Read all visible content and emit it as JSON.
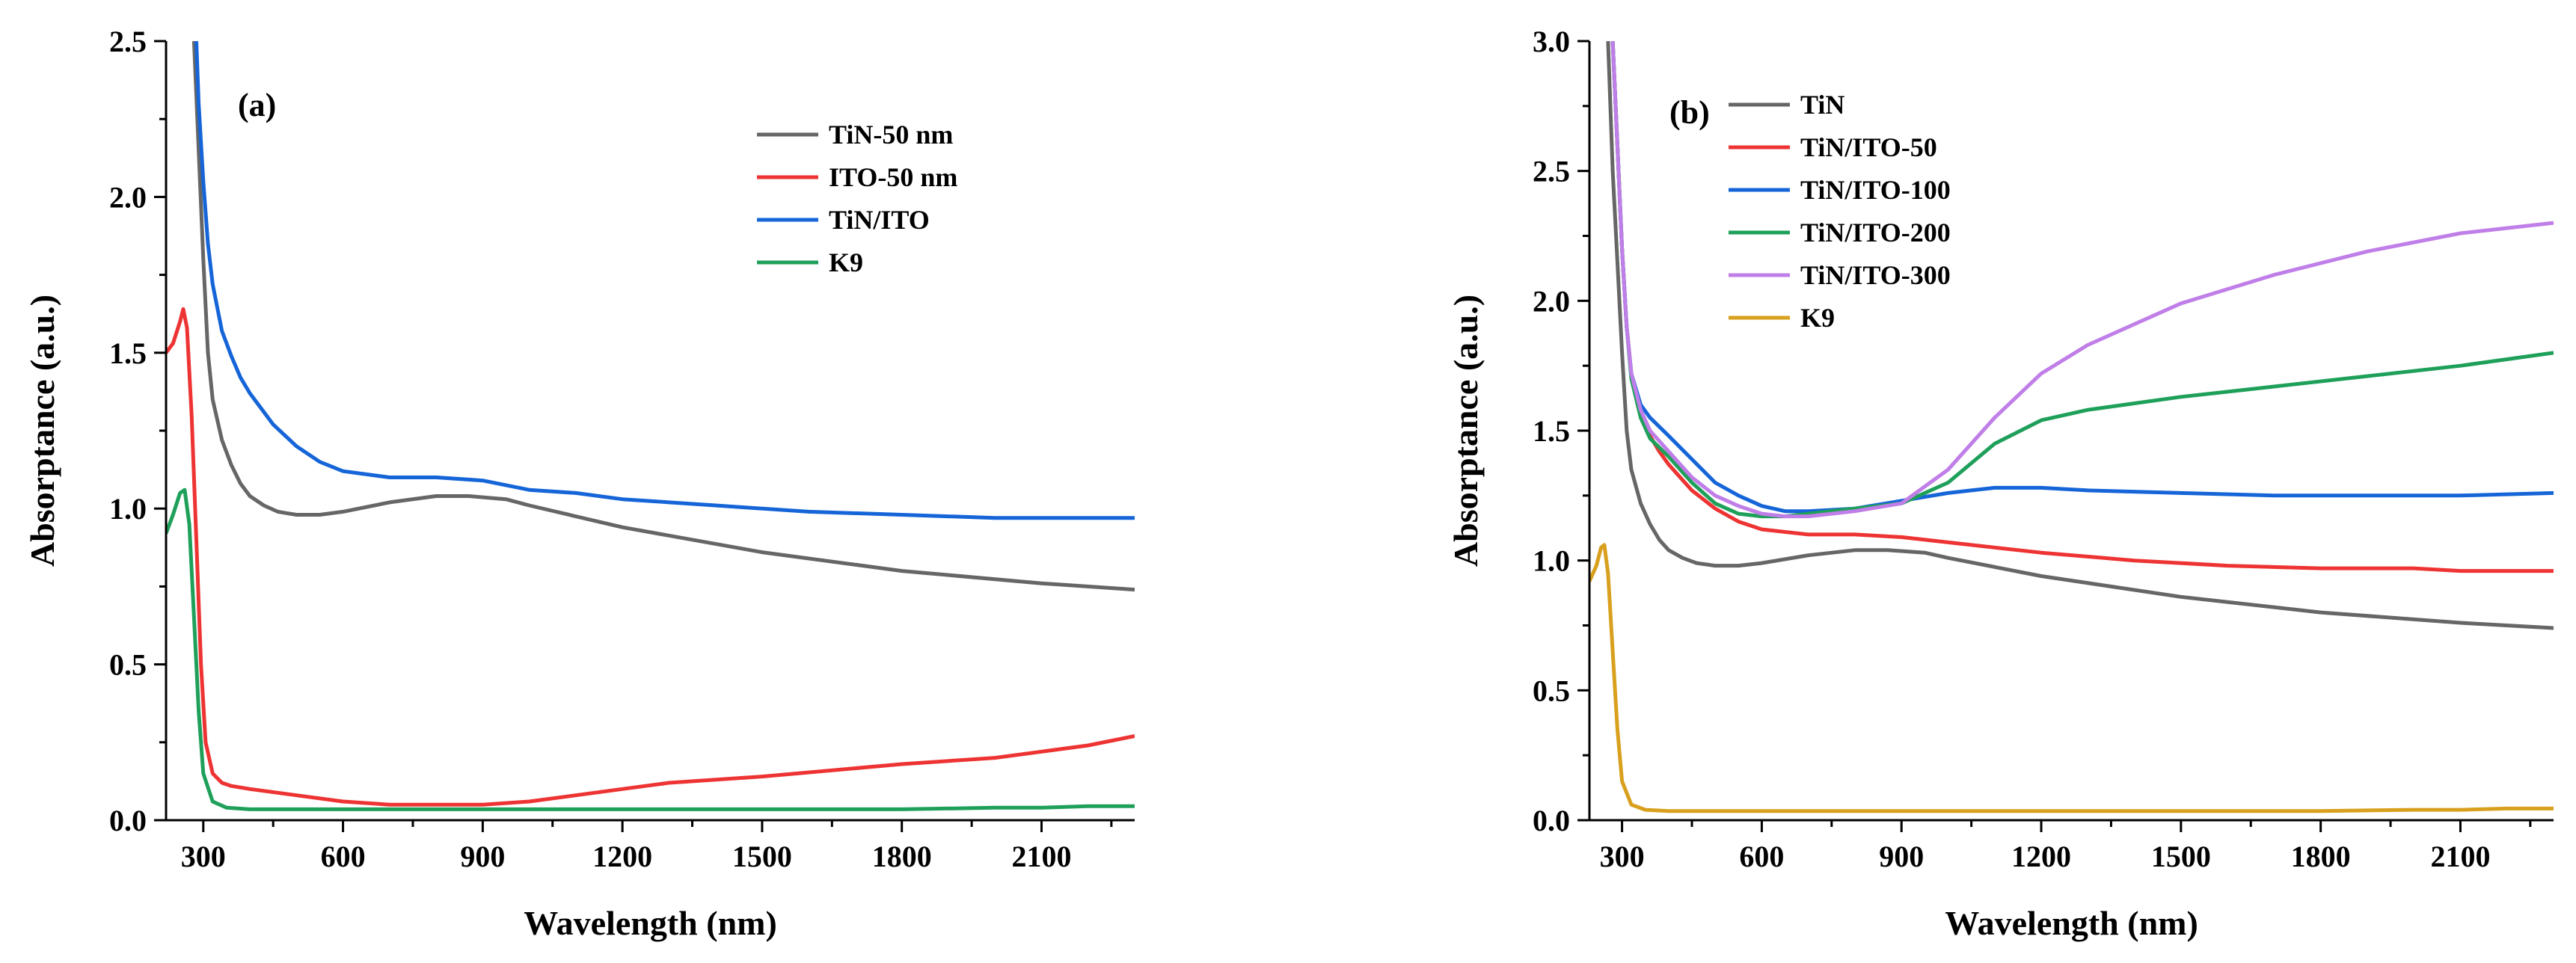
{
  "chart_data": [
    {
      "type": "line",
      "panel_label": "(a)",
      "xlabel": "Wavelength (nm)",
      "ylabel": "Absorptance (a.u.)",
      "xlim": [
        220,
        2300
      ],
      "ylim": [
        0,
        2.5
      ],
      "xticks": [
        300,
        600,
        900,
        1200,
        1500,
        1800,
        2100
      ],
      "yticks": [
        0.0,
        0.5,
        1.0,
        1.5,
        2.0,
        2.5
      ],
      "ytick_labels": [
        "0.0",
        "0.5",
        "1.0",
        "1.5",
        "2.0",
        "2.5"
      ],
      "legend_position": "top-right",
      "series": [
        {
          "name": "TiN-50 nm",
          "color": "#666666",
          "x": [
            280,
            290,
            300,
            310,
            320,
            340,
            360,
            380,
            400,
            430,
            460,
            500,
            550,
            600,
            700,
            800,
            870,
            950,
            1000,
            1200,
            1500,
            1800,
            2100,
            2300
          ],
          "y": [
            2.5,
            2.15,
            1.8,
            1.5,
            1.35,
            1.22,
            1.14,
            1.08,
            1.04,
            1.01,
            0.99,
            0.98,
            0.98,
            0.99,
            1.02,
            1.04,
            1.04,
            1.03,
            1.01,
            0.94,
            0.86,
            0.8,
            0.76,
            0.74
          ]
        },
        {
          "name": "ITO-50 nm",
          "color": "#ee3333",
          "x": [
            220,
            235,
            250,
            257,
            265,
            275,
            285,
            295,
            305,
            320,
            340,
            360,
            400,
            500,
            600,
            700,
            800,
            900,
            1000,
            1100,
            1200,
            1300,
            1500,
            1800,
            2000,
            2100,
            2200,
            2300
          ],
          "y": [
            1.5,
            1.53,
            1.6,
            1.64,
            1.58,
            1.3,
            0.9,
            0.5,
            0.25,
            0.15,
            0.12,
            0.11,
            0.1,
            0.08,
            0.06,
            0.05,
            0.05,
            0.05,
            0.06,
            0.08,
            0.1,
            0.12,
            0.14,
            0.18,
            0.2,
            0.22,
            0.24,
            0.27
          ]
        },
        {
          "name": "TiN/ITO",
          "color": "#1565d8",
          "x": [
            285,
            290,
            300,
            310,
            320,
            340,
            360,
            380,
            400,
            450,
            500,
            550,
            600,
            700,
            800,
            900,
            1000,
            1100,
            1200,
            1400,
            1600,
            1800,
            2000,
            2100,
            2300
          ],
          "y": [
            2.5,
            2.3,
            2.05,
            1.85,
            1.72,
            1.57,
            1.49,
            1.42,
            1.37,
            1.27,
            1.2,
            1.15,
            1.12,
            1.1,
            1.1,
            1.09,
            1.06,
            1.05,
            1.03,
            1.01,
            0.99,
            0.98,
            0.97,
            0.97,
            0.97
          ]
        },
        {
          "name": "K9",
          "color": "#1fa05a",
          "x": [
            220,
            235,
            250,
            260,
            270,
            280,
            290,
            300,
            320,
            350,
            400,
            600,
            900,
            1200,
            1500,
            1800,
            2000,
            2100,
            2200,
            2300
          ],
          "y": [
            0.92,
            0.98,
            1.05,
            1.06,
            0.95,
            0.65,
            0.35,
            0.15,
            0.06,
            0.04,
            0.035,
            0.035,
            0.035,
            0.035,
            0.035,
            0.035,
            0.04,
            0.04,
            0.045,
            0.045
          ]
        }
      ]
    },
    {
      "type": "line",
      "panel_label": "(b)",
      "xlabel": "Wavelength (nm)",
      "ylabel": "Absorptance (a.u.)",
      "xlim": [
        230,
        2300
      ],
      "ylim": [
        0,
        3.0
      ],
      "xticks": [
        300,
        600,
        900,
        1200,
        1500,
        1800,
        2100
      ],
      "yticks": [
        0.0,
        0.5,
        1.0,
        1.5,
        2.0,
        2.5,
        3.0
      ],
      "ytick_labels": [
        "0.0",
        "0.5",
        "1.0",
        "1.5",
        "2.0",
        "2.5",
        "3.0"
      ],
      "legend_position": "top-left",
      "series": [
        {
          "name": "TiN",
          "color": "#666666",
          "x": [
            270,
            280,
            290,
            300,
            310,
            320,
            340,
            360,
            380,
            400,
            430,
            460,
            500,
            550,
            600,
            700,
            800,
            870,
            950,
            1000,
            1200,
            1500,
            1800,
            2100,
            2300
          ],
          "y": [
            3.0,
            2.5,
            2.15,
            1.8,
            1.5,
            1.35,
            1.22,
            1.14,
            1.08,
            1.04,
            1.01,
            0.99,
            0.98,
            0.98,
            0.99,
            1.02,
            1.04,
            1.04,
            1.03,
            1.01,
            0.94,
            0.86,
            0.8,
            0.76,
            0.74
          ]
        },
        {
          "name": "TiN/ITO-50",
          "color": "#ee3333",
          "x": [
            280,
            290,
            300,
            310,
            320,
            340,
            360,
            380,
            400,
            450,
            500,
            550,
            600,
            700,
            800,
            900,
            1000,
            1100,
            1200,
            1400,
            1600,
            1800,
            2000,
            2100,
            2300
          ],
          "y": [
            3.0,
            2.6,
            2.2,
            1.9,
            1.72,
            1.57,
            1.48,
            1.42,
            1.37,
            1.27,
            1.2,
            1.15,
            1.12,
            1.1,
            1.1,
            1.09,
            1.07,
            1.05,
            1.03,
            1.0,
            0.98,
            0.97,
            0.97,
            0.96,
            0.96
          ]
        },
        {
          "name": "TiN/ITO-100",
          "color": "#1565d8",
          "x": [
            280,
            290,
            300,
            310,
            320,
            340,
            360,
            400,
            450,
            500,
            550,
            600,
            650,
            700,
            800,
            900,
            1000,
            1100,
            1200,
            1300,
            1500,
            1700,
            1900,
            2100,
            2300
          ],
          "y": [
            3.0,
            2.6,
            2.2,
            1.9,
            1.72,
            1.6,
            1.55,
            1.48,
            1.39,
            1.3,
            1.25,
            1.21,
            1.19,
            1.19,
            1.2,
            1.23,
            1.26,
            1.28,
            1.28,
            1.27,
            1.26,
            1.25,
            1.25,
            1.25,
            1.26
          ]
        },
        {
          "name": "TiN/ITO-200",
          "color": "#1fa05a",
          "x": [
            280,
            290,
            300,
            310,
            320,
            340,
            360,
            400,
            450,
            500,
            550,
            600,
            650,
            700,
            800,
            900,
            1000,
            1100,
            1200,
            1300,
            1500,
            1700,
            1900,
            2100,
            2300
          ],
          "y": [
            3.0,
            2.6,
            2.2,
            1.9,
            1.7,
            1.55,
            1.47,
            1.4,
            1.3,
            1.22,
            1.18,
            1.17,
            1.17,
            1.18,
            1.2,
            1.22,
            1.3,
            1.45,
            1.54,
            1.58,
            1.63,
            1.67,
            1.71,
            1.75,
            1.8
          ]
        },
        {
          "name": "TiN/ITO-300",
          "color": "#c07ee8",
          "x": [
            280,
            290,
            300,
            310,
            320,
            340,
            360,
            400,
            450,
            500,
            550,
            600,
            650,
            700,
            800,
            900,
            1000,
            1100,
            1200,
            1300,
            1500,
            1700,
            1900,
            2100,
            2300
          ],
          "y": [
            3.0,
            2.6,
            2.2,
            1.9,
            1.72,
            1.58,
            1.5,
            1.42,
            1.32,
            1.25,
            1.21,
            1.18,
            1.17,
            1.17,
            1.19,
            1.22,
            1.35,
            1.55,
            1.72,
            1.83,
            1.99,
            2.1,
            2.19,
            2.26,
            2.3
          ]
        },
        {
          "name": "K9",
          "color": "#d9a01e",
          "x": [
            230,
            245,
            255,
            262,
            270,
            280,
            290,
            300,
            320,
            350,
            400,
            600,
            900,
            1200,
            1500,
            1800,
            2000,
            2100,
            2200,
            2300
          ],
          "y": [
            0.92,
            0.98,
            1.05,
            1.06,
            0.95,
            0.65,
            0.35,
            0.15,
            0.06,
            0.04,
            0.035,
            0.035,
            0.035,
            0.035,
            0.035,
            0.035,
            0.04,
            0.04,
            0.045,
            0.045
          ]
        }
      ]
    }
  ]
}
